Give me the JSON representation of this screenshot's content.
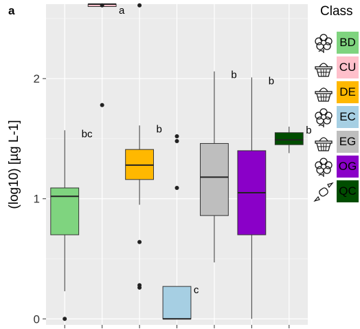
{
  "panel_label": "a",
  "legend": {
    "title": "Class",
    "items": [
      {
        "label": "BD",
        "color": "#7fd47f",
        "icon": "flower-icon"
      },
      {
        "label": "CU",
        "color": "#ffc0cb",
        "icon": "basket-icon"
      },
      {
        "label": "DE",
        "color": "#ffb800",
        "icon": "basket-icon"
      },
      {
        "label": "EC",
        "color": "#a6cfe3",
        "icon": "flower-icon"
      },
      {
        "label": "EG",
        "color": "#bebebe",
        "icon": "basket-icon"
      },
      {
        "label": "OG",
        "color": "#8a00c8",
        "icon": "flower-icon"
      },
      {
        "label": "QC",
        "color": "#004d00",
        "icon": "candy-icon"
      }
    ]
  },
  "chart_data": {
    "type": "box",
    "ylabel": "(log10) [µg L-1]",
    "ylim": [
      -0.05,
      2.62
    ],
    "yticks": [
      0,
      1,
      2
    ],
    "grid": true,
    "background": "#ebebeb",
    "boxes": [
      {
        "name": "BD",
        "color": "#7fd47f",
        "min": 0.23,
        "q1": 0.7,
        "median": 1.02,
        "q3": 1.09,
        "max": 1.57,
        "outliers": [
          0.0
        ],
        "letter": "bc"
      },
      {
        "name": "CU",
        "color": "#ffc0cb",
        "min": 2.6,
        "q1": 2.6,
        "median": 2.63,
        "q3": 2.63,
        "max": 2.63,
        "outliers": [
          1.78,
          2.61
        ],
        "letter": "a"
      },
      {
        "name": "DE",
        "color": "#ffb800",
        "min": 0.95,
        "q1": 1.16,
        "median": 1.28,
        "q3": 1.41,
        "max": 1.61,
        "outliers": [
          0.64,
          0.28,
          0.26,
          2.61
        ],
        "letter": "b"
      },
      {
        "name": "EC",
        "color": "#a6cfe3",
        "min": 0.0,
        "q1": 0.0,
        "median": 0.0,
        "q3": 0.27,
        "max": 0.27,
        "outliers": [
          1.52,
          1.48,
          1.09
        ],
        "letter": "c"
      },
      {
        "name": "EG",
        "color": "#bebebe",
        "min": 0.47,
        "q1": 0.86,
        "median": 1.18,
        "q3": 1.46,
        "max": 2.06,
        "outliers": [],
        "letter": "b"
      },
      {
        "name": "OG",
        "color": "#8a00c8",
        "min": 0.0,
        "q1": 0.7,
        "median": 1.05,
        "q3": 1.4,
        "max": 2.01,
        "outliers": [],
        "letter": "b"
      },
      {
        "name": "QC",
        "color": "#004d00",
        "min": 1.38,
        "q1": 1.45,
        "median": 1.49,
        "q3": 1.55,
        "max": 1.6,
        "outliers": [],
        "letter": "b"
      }
    ]
  }
}
